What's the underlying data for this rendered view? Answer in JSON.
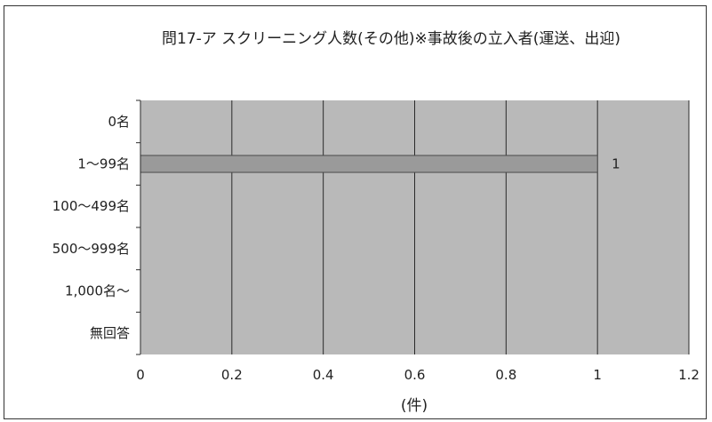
{
  "chart_data": {
    "type": "bar",
    "orientation": "horizontal",
    "title": "問17-ア スクリーニング人数(その他)※事故後の立入者(運送、出迎)",
    "xlabel": "(件)",
    "ylabel": "",
    "categories": [
      "0名",
      "1〜99名",
      "100〜499名",
      "500〜999名",
      "1,000名〜",
      "無回答"
    ],
    "values": [
      0,
      1,
      0,
      0,
      0,
      0
    ],
    "data_labels": [
      "",
      "1",
      "",
      "",
      "",
      ""
    ],
    "xlim": [
      0,
      1.2
    ],
    "x_ticks": [
      "0",
      "0.2",
      "0.4",
      "0.6",
      "0.8",
      "1",
      "1.2"
    ],
    "grid": true,
    "legend": "none",
    "colors": {
      "plot_background": "#b9b9b9",
      "bar_fill": "#9a9a9a",
      "bar_stroke": "#4a4a4a",
      "gridline": "#2a2a2a",
      "axis": "#2a2a2a"
    }
  }
}
